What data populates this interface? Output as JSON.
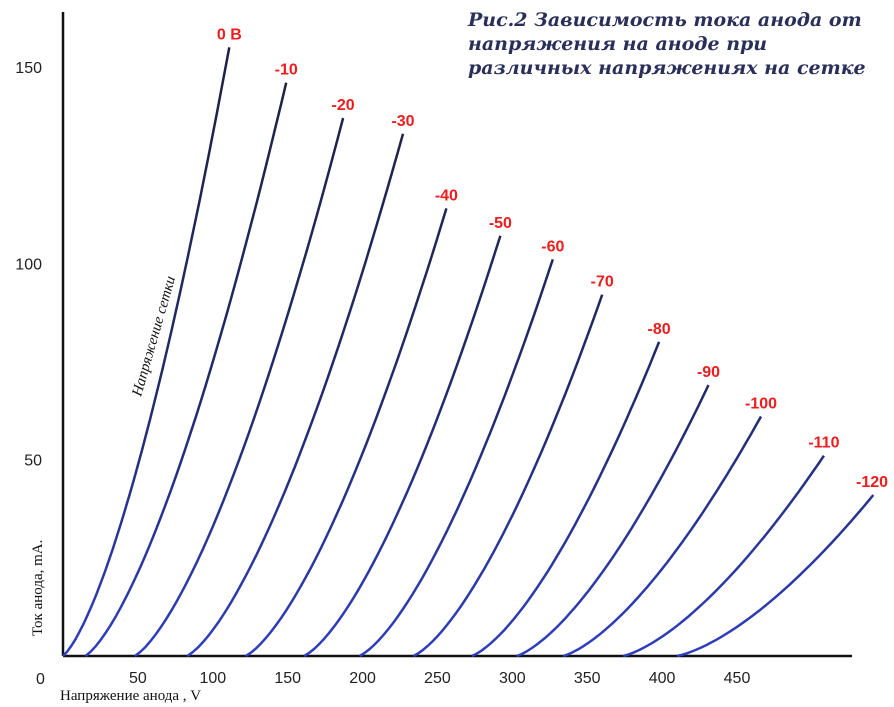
{
  "chart_data": {
    "type": "line",
    "title": "Рис.2 Зависимость тока анода от напряжения на аноде при различных напряжениях на сетке",
    "xlabel": "Напряжение анода , V",
    "ylabel": "Ток анода, mA.",
    "annotation": "Напряжение сетки",
    "xlim": [
      0,
      540
    ],
    "ylim": [
      0,
      160
    ],
    "x_ticks": [
      "50",
      "100",
      "150",
      "200",
      "250",
      "300",
      "350",
      "400",
      "450"
    ],
    "y_ticks": [
      "150",
      "100",
      "50"
    ],
    "origin_label": "0",
    "colors": {
      "axis": "#111111",
      "curve_top": "#1b2140",
      "curve_bottom": "#2f3fbf",
      "label": "#ee1c1c"
    },
    "series": [
      {
        "name": "0 В",
        "x_start": 0,
        "x_end": 111,
        "y_end": 155
      },
      {
        "name": "-10",
        "x_start": 15,
        "x_end": 149,
        "y_end": 146
      },
      {
        "name": "-20",
        "x_start": 48,
        "x_end": 187,
        "y_end": 137
      },
      {
        "name": "-30",
        "x_start": 83,
        "x_end": 227,
        "y_end": 133
      },
      {
        "name": "-40",
        "x_start": 122,
        "x_end": 256,
        "y_end": 114
      },
      {
        "name": "-50",
        "x_start": 161,
        "x_end": 292,
        "y_end": 107
      },
      {
        "name": "-60",
        "x_start": 198,
        "x_end": 327,
        "y_end": 101
      },
      {
        "name": "-70",
        "x_start": 234,
        "x_end": 360,
        "y_end": 92
      },
      {
        "name": "-80",
        "x_start": 273,
        "x_end": 398,
        "y_end": 80
      },
      {
        "name": "-90",
        "x_start": 303,
        "x_end": 431,
        "y_end": 69
      },
      {
        "name": "-100",
        "x_start": 334,
        "x_end": 466,
        "y_end": 61
      },
      {
        "name": "-110",
        "x_start": 374,
        "x_end": 508,
        "y_end": 51
      },
      {
        "name": "-120",
        "x_start": 410,
        "x_end": 541,
        "y_end": 41
      }
    ]
  }
}
